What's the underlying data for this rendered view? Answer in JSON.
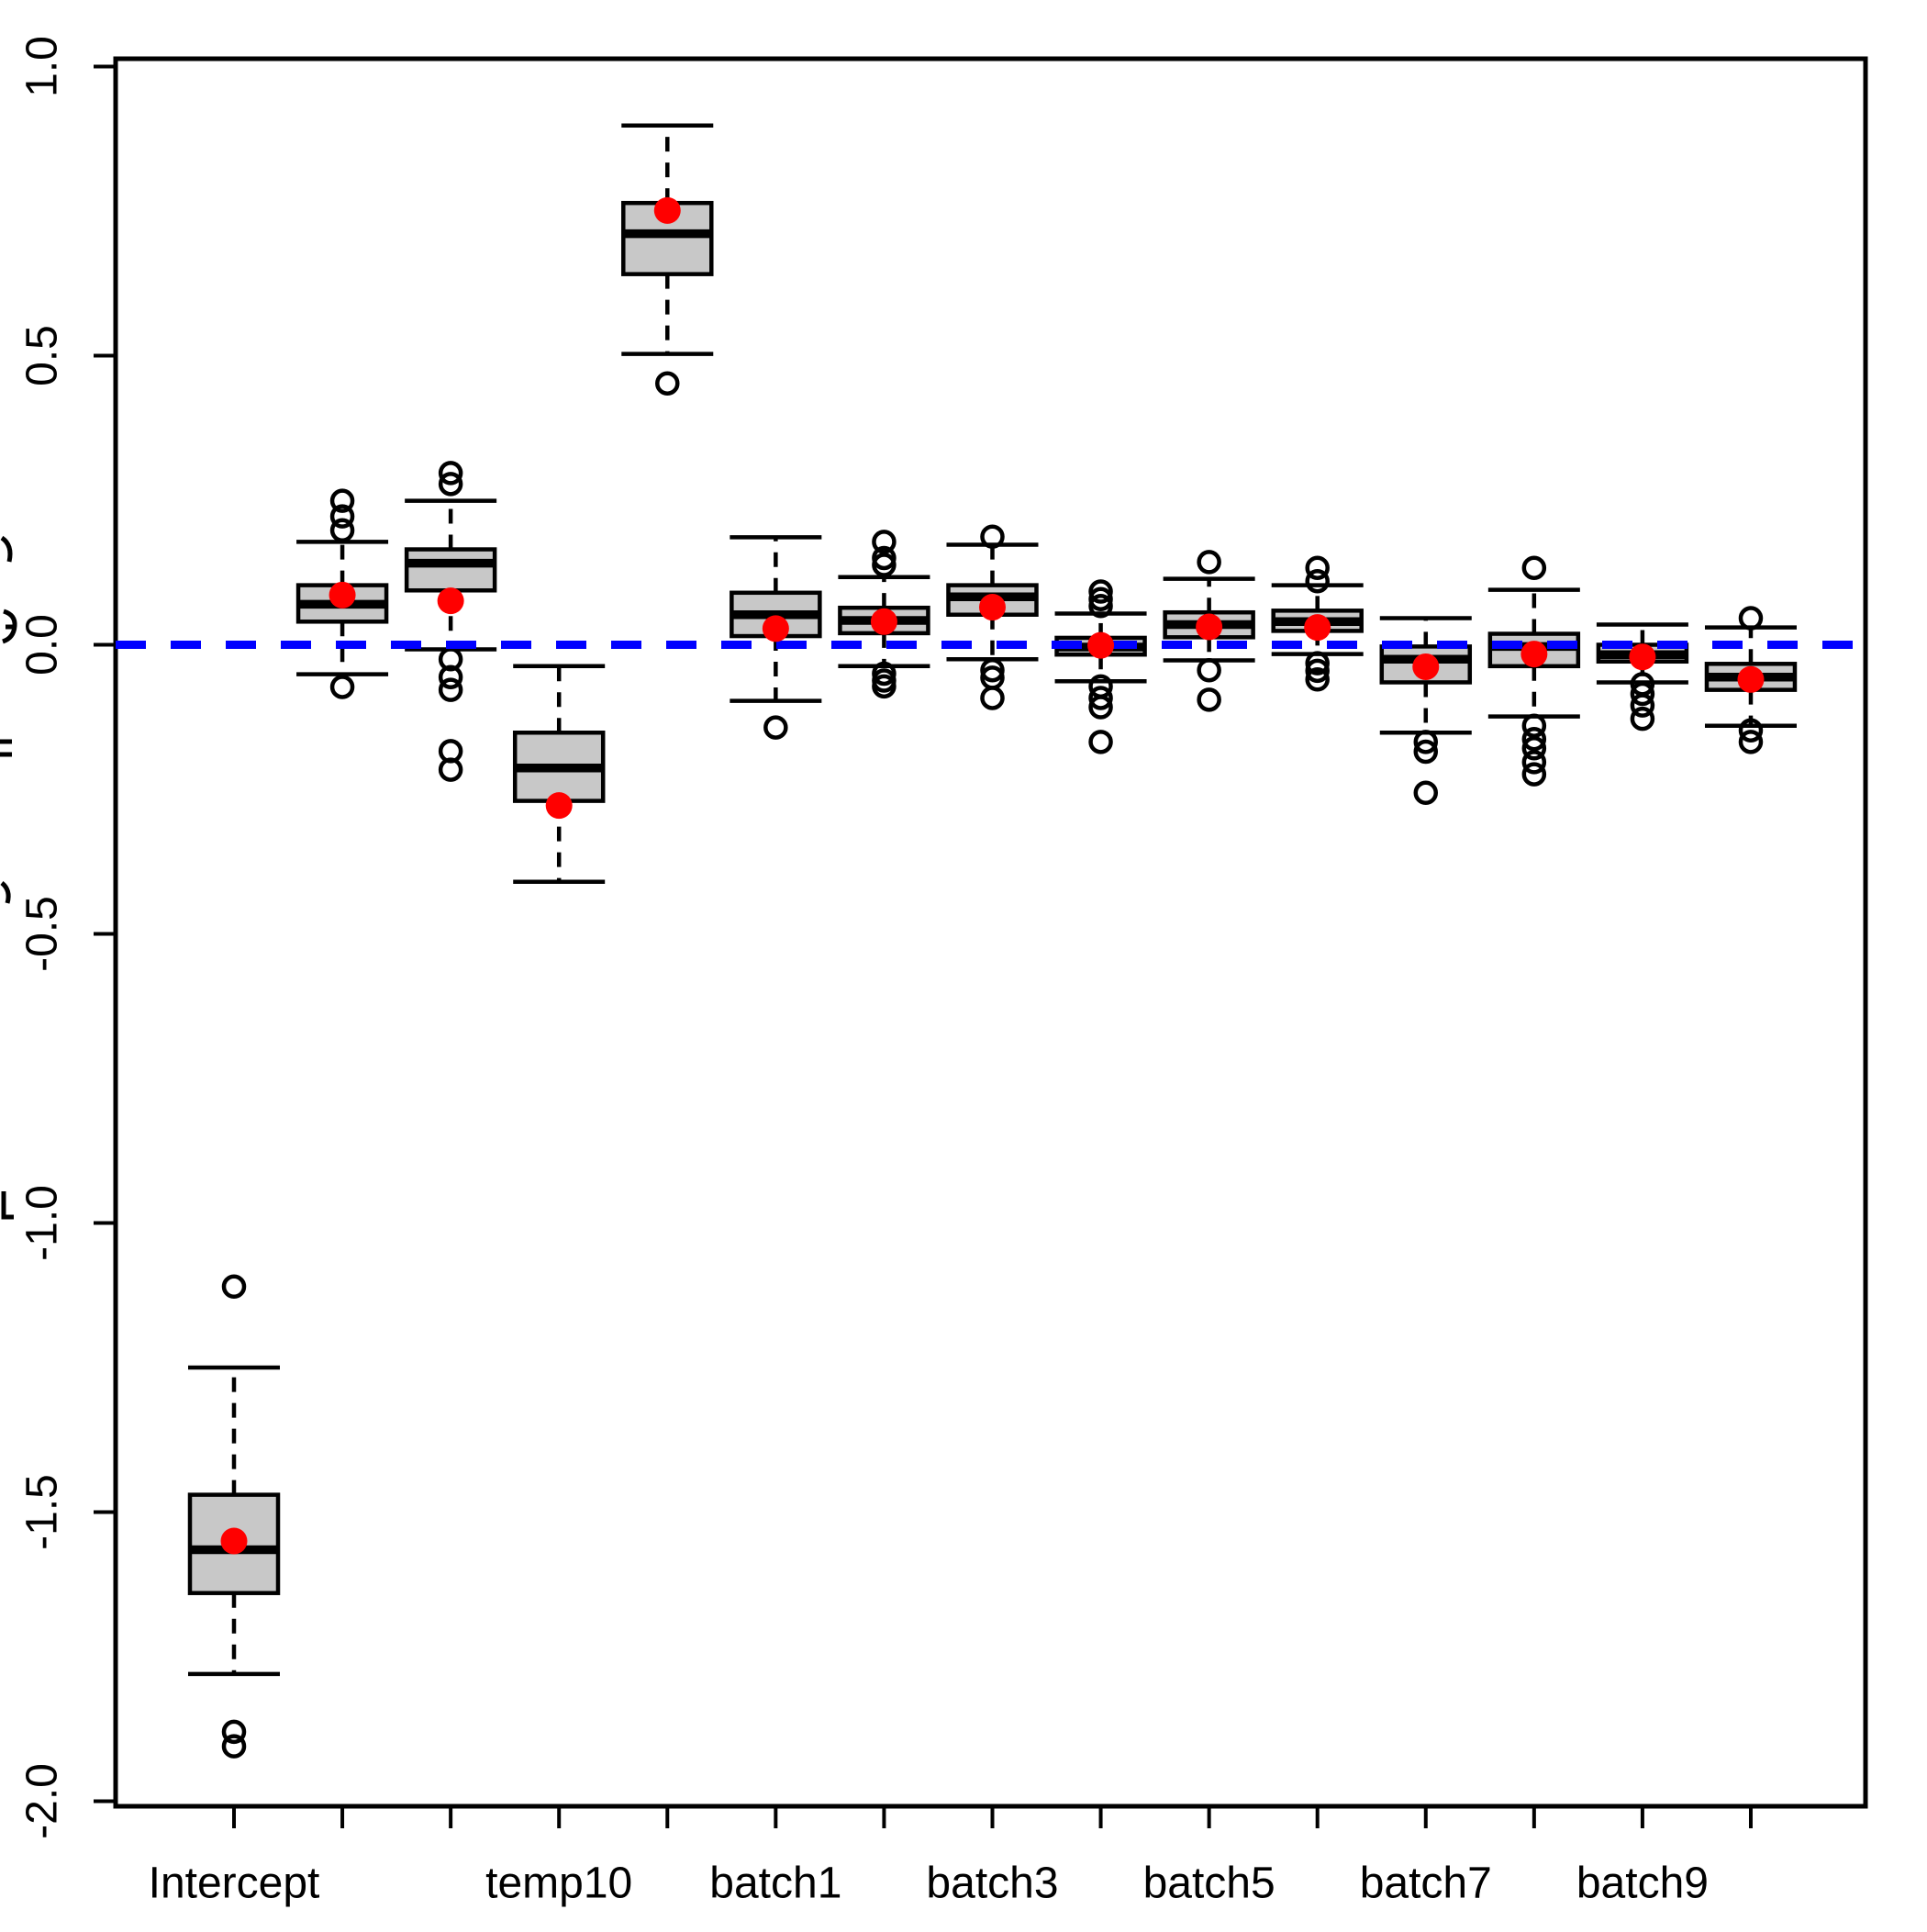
{
  "figure": {
    "background": "#FFFFFF"
  },
  "y_axis": {
    "tick_labels": [
      "1.0",
      "0.5",
      "0.0",
      "-0.5",
      "-1.0",
      "-1.5",
      "-2.0"
    ],
    "tick_values": [
      1.0,
      0.5,
      0.0,
      -0.5,
      -1.0,
      -1.5,
      -2.0
    ]
  },
  "x_axis": {
    "n_positions": 15,
    "tick_labels": [
      "Intercept",
      "temp10",
      "batch1",
      "batch3",
      "batch5",
      "batch7",
      "batch9"
    ],
    "labeled_positions": [
      1,
      4,
      6,
      8,
      10,
      12,
      14
    ]
  },
  "chart_data": {
    "type": "boxplot",
    "title": "",
    "xlabel": "",
    "ylabel": "",
    "ylim": [
      -2.01,
      1.01
    ],
    "grid": false,
    "legend": null,
    "box_fill": "#C8C8C8",
    "box_border": "#000000",
    "marker_color": "#FF0000",
    "reference_line": {
      "value": 0.0,
      "color": "#0000FF",
      "style": "dashed"
    },
    "boxes": [
      {
        "pos": 1,
        "label": "Intercept",
        "whisker_high": -1.25,
        "q3": -1.47,
        "median": -1.565,
        "q1": -1.64,
        "whisker_low": -1.78,
        "outliers": [
          -1.11,
          -1.88,
          -1.905
        ],
        "red_point": -1.55
      },
      {
        "pos": 2,
        "label": "",
        "whisker_high": 0.178,
        "q3": 0.103,
        "median": 0.07,
        "q1": 0.04,
        "whisker_low": -0.051,
        "outliers": [
          0.249,
          0.222,
          0.198,
          -0.073
        ],
        "red_point": 0.086
      },
      {
        "pos": 3,
        "label": "",
        "whisker_high": 0.249,
        "q3": 0.165,
        "median": 0.141,
        "q1": 0.094,
        "whisker_low": -0.008,
        "outliers": [
          0.297,
          0.278,
          -0.025,
          -0.056,
          -0.078,
          -0.184,
          -0.216
        ],
        "red_point": 0.076
      },
      {
        "pos": 4,
        "label": "temp10",
        "whisker_high": -0.037,
        "q3": -0.152,
        "median": -0.213,
        "q1": -0.27,
        "whisker_low": -0.41,
        "outliers": [],
        "red_point": -0.278
      },
      {
        "pos": 5,
        "label": "",
        "whisker_high": 0.898,
        "q3": 0.764,
        "median": 0.711,
        "q1": 0.641,
        "whisker_low": 0.503,
        "outliers": [
          0.452
        ],
        "red_point": 0.751
      },
      {
        "pos": 6,
        "label": "batch1",
        "whisker_high": 0.186,
        "q3": 0.09,
        "median": 0.052,
        "q1": 0.015,
        "whisker_low": -0.097,
        "outliers": [
          -0.143
        ],
        "red_point": 0.028
      },
      {
        "pos": 7,
        "label": "",
        "whisker_high": 0.117,
        "q3": 0.064,
        "median": 0.042,
        "q1": 0.02,
        "whisker_low": -0.037,
        "outliers": [
          0.178,
          0.15,
          0.138,
          -0.05,
          -0.062,
          -0.072
        ],
        "red_point": 0.04
      },
      {
        "pos": 8,
        "label": "batch3",
        "whisker_high": 0.173,
        "q3": 0.103,
        "median": 0.083,
        "q1": 0.052,
        "whisker_low": -0.025,
        "outliers": [
          0.187,
          -0.044,
          -0.057,
          -0.092
        ],
        "red_point": 0.065
      },
      {
        "pos": 9,
        "label": "",
        "whisker_high": 0.054,
        "q3": 0.012,
        "median": -0.004,
        "q1": -0.017,
        "whisker_low": -0.063,
        "outliers": [
          0.092,
          0.079,
          0.067,
          -0.072,
          -0.092,
          -0.108,
          -0.168
        ],
        "red_point": -0.001
      },
      {
        "pos": 10,
        "label": "batch5",
        "whisker_high": 0.114,
        "q3": 0.056,
        "median": 0.035,
        "q1": 0.013,
        "whisker_low": -0.027,
        "outliers": [
          0.143,
          -0.044,
          -0.095
        ],
        "red_point": 0.031
      },
      {
        "pos": 11,
        "label": "",
        "whisker_high": 0.103,
        "q3": 0.059,
        "median": 0.04,
        "q1": 0.024,
        "whisker_low": -0.016,
        "outliers": [
          0.133,
          0.11,
          -0.032,
          -0.045,
          -0.06
        ],
        "red_point": 0.03
      },
      {
        "pos": 12,
        "label": "batch7",
        "whisker_high": 0.046,
        "q3": -0.003,
        "median": -0.025,
        "q1": -0.065,
        "whisker_low": -0.152,
        "outliers": [
          -0.168,
          -0.185,
          -0.256
        ],
        "red_point": -0.038
      },
      {
        "pos": 13,
        "label": "",
        "whisker_high": 0.095,
        "q3": 0.019,
        "median": -0.003,
        "q1": -0.037,
        "whisker_low": -0.124,
        "outliers": [
          0.133,
          -0.14,
          -0.163,
          -0.179,
          -0.203,
          -0.224
        ],
        "red_point": -0.016
      },
      {
        "pos": 14,
        "label": "batch9",
        "whisker_high": 0.035,
        "q3": 0.0,
        "median": -0.017,
        "q1": -0.029,
        "whisker_low": -0.065,
        "outliers": [
          -0.068,
          -0.085,
          -0.105,
          -0.128
        ],
        "red_point": -0.021
      },
      {
        "pos": 15,
        "label": "",
        "whisker_high": 0.03,
        "q3": -0.033,
        "median": -0.056,
        "q1": -0.078,
        "whisker_low": -0.14,
        "outliers": [
          0.046,
          -0.148,
          -0.168
        ],
        "red_point": -0.06
      }
    ]
  }
}
